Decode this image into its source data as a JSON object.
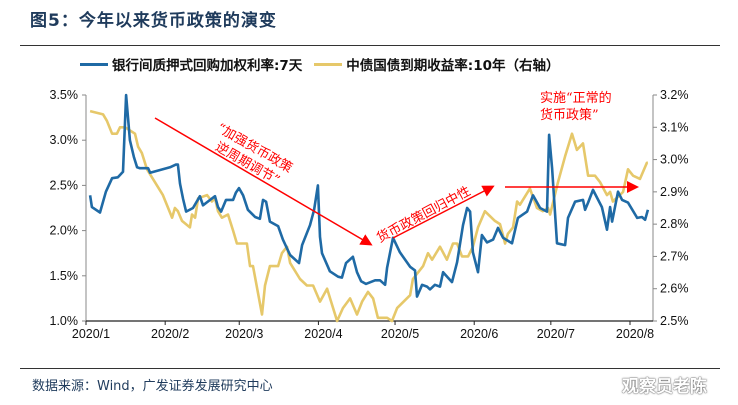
{
  "title": "图5：今年以来货币政策的演变",
  "source": "数据来源：Wind，广发证券发展研究中心",
  "watermark": "观察员老陈",
  "colors": {
    "blue": "#1f6aa5",
    "yellow": "#e6c86a",
    "annotation": "#ff0000"
  },
  "annotations": {
    "a1_line1": "“加强货币政策",
    "a1_line2": "逆周期调节”",
    "a2": "货币政策回归中性",
    "a3_line1": "实施“正常的",
    "a3_line2": "货币政策”"
  },
  "chart_data": {
    "type": "line",
    "x_unit": "days since 2020-01-01",
    "x_ticks": [
      {
        "day": 0,
        "label": "2020/1"
      },
      {
        "day": 31,
        "label": "2020/2"
      },
      {
        "day": 60,
        "label": "2020/3"
      },
      {
        "day": 91,
        "label": "2020/4"
      },
      {
        "day": 121,
        "label": "2020/5"
      },
      {
        "day": 152,
        "label": "2020/6"
      },
      {
        "day": 182,
        "label": "2020/7"
      },
      {
        "day": 213,
        "label": "2020/8"
      }
    ],
    "xlim": [
      0,
      222
    ],
    "y_left": {
      "lim": [
        1.0,
        3.5
      ],
      "ticks": [
        "1.0%",
        "1.5%",
        "2.0%",
        "2.5%",
        "3.0%",
        "3.5%"
      ],
      "values": [
        1.0,
        1.5,
        2.0,
        2.5,
        3.0,
        3.5
      ]
    },
    "y_right": {
      "lim": [
        2.5,
        3.2
      ],
      "ticks": [
        "2.5%",
        "2.6%",
        "2.7%",
        "2.8%",
        "2.9%",
        "3.0%",
        "3.1%",
        "3.2%"
      ],
      "values": [
        2.5,
        2.6,
        2.7,
        2.8,
        2.9,
        3.0,
        3.1,
        3.2
      ]
    },
    "legend_position": "top",
    "series": [
      {
        "name": "银行间质押式回购加权利率:7天",
        "axis": "left",
        "color": "#1f6aa5",
        "points": [
          [
            1.6,
            2.39
          ],
          [
            2.3,
            2.26
          ],
          [
            5.5,
            2.2
          ],
          [
            7.8,
            2.43
          ],
          [
            10.2,
            2.58
          ],
          [
            12.5,
            2.59
          ],
          [
            14.5,
            2.65
          ],
          [
            15.7,
            3.5
          ],
          [
            17.2,
            3.0
          ],
          [
            18.8,
            2.81
          ],
          [
            20,
            2.7
          ],
          [
            21.1,
            2.69
          ],
          [
            24.3,
            2.69
          ],
          [
            25.1,
            2.64
          ],
          [
            29,
            2.67
          ],
          [
            32.9,
            2.7
          ],
          [
            35.2,
            2.73
          ],
          [
            36,
            2.73
          ],
          [
            36.8,
            2.52
          ],
          [
            38,
            2.35
          ],
          [
            39.2,
            2.21
          ],
          [
            41.9,
            2.25
          ],
          [
            44.6,
            2.38
          ],
          [
            45.8,
            2.28
          ],
          [
            48.6,
            2.34
          ],
          [
            50.5,
            2.38
          ],
          [
            51.7,
            2.26
          ],
          [
            52.9,
            2.21
          ],
          [
            54.8,
            2.34
          ],
          [
            57.6,
            2.34
          ],
          [
            58.7,
            2.42
          ],
          [
            59.9,
            2.47
          ],
          [
            61.5,
            2.39
          ],
          [
            63.4,
            2.23
          ],
          [
            66.2,
            2.15
          ],
          [
            68.1,
            2.13
          ],
          [
            69.3,
            2.34
          ],
          [
            70.5,
            2.32
          ],
          [
            72,
            2.1
          ],
          [
            75.2,
            2.05
          ],
          [
            77.1,
            1.9
          ],
          [
            79.9,
            1.73
          ],
          [
            83.4,
            1.64
          ],
          [
            84.6,
            1.84
          ],
          [
            87.7,
            2.06
          ],
          [
            89.3,
            2.23
          ],
          [
            90.8,
            2.5
          ],
          [
            91.6,
            1.93
          ],
          [
            92.4,
            1.75
          ],
          [
            95.5,
            1.55
          ],
          [
            98.7,
            1.49
          ],
          [
            100.2,
            1.48
          ],
          [
            101.8,
            1.64
          ],
          [
            104.5,
            1.71
          ],
          [
            106.1,
            1.54
          ],
          [
            107.7,
            1.44
          ],
          [
            109.6,
            1.41
          ],
          [
            113.2,
            1.45
          ],
          [
            115.1,
            1.45
          ],
          [
            117.1,
            1.4
          ],
          [
            117.9,
            1.59
          ],
          [
            120.2,
            1.92
          ],
          [
            122.9,
            1.76
          ],
          [
            126.9,
            1.6
          ],
          [
            128.8,
            1.56
          ],
          [
            129.6,
            1.27
          ],
          [
            131.6,
            1.4
          ],
          [
            133.5,
            1.38
          ],
          [
            134.7,
            1.35
          ],
          [
            136.6,
            1.4
          ],
          [
            138.6,
            1.38
          ],
          [
            139.8,
            1.54
          ],
          [
            141.7,
            1.48
          ],
          [
            143.3,
            1.43
          ],
          [
            145.3,
            1.65
          ],
          [
            147.6,
            2.06
          ],
          [
            149.2,
            2.25
          ],
          [
            150.4,
            2.21
          ],
          [
            151.5,
            1.76
          ],
          [
            153.5,
            1.54
          ],
          [
            155,
            1.95
          ],
          [
            157,
            1.87
          ],
          [
            159.4,
            1.9
          ],
          [
            161.3,
            2.03
          ],
          [
            163.3,
            1.92
          ],
          [
            166.8,
            1.86
          ],
          [
            169.1,
            2.14
          ],
          [
            172.7,
            2.21
          ],
          [
            175,
            2.39
          ],
          [
            177.8,
            2.25
          ],
          [
            180.5,
            2.21
          ],
          [
            181.3,
            3.06
          ],
          [
            182.5,
            2.69
          ],
          [
            184.4,
            1.86
          ],
          [
            187.6,
            1.84
          ],
          [
            188.7,
            2.14
          ],
          [
            191.5,
            2.32
          ],
          [
            194.6,
            2.34
          ],
          [
            195.4,
            2.23
          ],
          [
            196.6,
            2.31
          ],
          [
            198.5,
            2.45
          ],
          [
            202,
            2.26
          ],
          [
            204,
            2.01
          ],
          [
            205.2,
            2.26
          ],
          [
            206,
            2.1
          ],
          [
            208.3,
            2.43
          ],
          [
            209.9,
            2.34
          ],
          [
            212.2,
            2.31
          ],
          [
            215.8,
            2.14
          ],
          [
            217.7,
            2.15
          ],
          [
            218.9,
            2.12
          ],
          [
            220,
            2.23
          ]
        ]
      },
      {
        "name": "中债国债到期收益率:10年（右轴）",
        "axis": "right",
        "color": "#e6c86a",
        "points": [
          [
            1.6,
            3.15
          ],
          [
            6.7,
            3.14
          ],
          [
            8.2,
            3.12
          ],
          [
            10.2,
            3.08
          ],
          [
            12.1,
            3.08
          ],
          [
            13.3,
            3.1
          ],
          [
            15.3,
            3.1
          ],
          [
            19.2,
            3.08
          ],
          [
            20.4,
            3.04
          ],
          [
            21.9,
            3.02
          ],
          [
            23.9,
            2.97
          ],
          [
            30.1,
            2.89
          ],
          [
            33.7,
            2.82
          ],
          [
            34.8,
            2.85
          ],
          [
            36,
            2.84
          ],
          [
            37.6,
            2.81
          ],
          [
            40.7,
            2.79
          ],
          [
            41.5,
            2.83
          ],
          [
            42.7,
            2.82
          ],
          [
            43.9,
            2.88
          ],
          [
            47.4,
            2.89
          ],
          [
            49.3,
            2.87
          ],
          [
            50.5,
            2.88
          ],
          [
            51.7,
            2.84
          ],
          [
            53.2,
            2.82
          ],
          [
            55.6,
            2.83
          ],
          [
            57.6,
            2.78
          ],
          [
            59.1,
            2.74
          ],
          [
            63,
            2.74
          ],
          [
            64.2,
            2.67
          ],
          [
            65.4,
            2.67
          ],
          [
            68.9,
            2.52
          ],
          [
            70.1,
            2.61
          ],
          [
            72,
            2.67
          ],
          [
            75.2,
            2.67
          ],
          [
            76.7,
            2.71
          ],
          [
            78.7,
            2.73
          ],
          [
            79.9,
            2.68
          ],
          [
            83.8,
            2.63
          ],
          [
            86.5,
            2.61
          ],
          [
            88.9,
            2.61
          ],
          [
            91.6,
            2.56
          ],
          [
            94.4,
            2.6
          ],
          [
            98.3,
            2.5
          ],
          [
            100.6,
            2.54
          ],
          [
            103.4,
            2.57
          ],
          [
            106.1,
            2.52
          ],
          [
            108.1,
            2.56
          ],
          [
            110.4,
            2.59
          ],
          [
            112.4,
            2.57
          ],
          [
            114.3,
            2.51
          ],
          [
            117.9,
            2.51
          ],
          [
            119.8,
            2.5
          ],
          [
            121.8,
            2.54
          ],
          [
            126.9,
            2.58
          ],
          [
            128,
            2.63
          ],
          [
            132,
            2.67
          ],
          [
            133.9,
            2.71
          ],
          [
            135.5,
            2.69
          ],
          [
            138.6,
            2.73
          ],
          [
            141.3,
            2.69
          ],
          [
            143.7,
            2.74
          ],
          [
            145.3,
            2.74
          ],
          [
            147.2,
            2.7
          ],
          [
            149.6,
            2.7
          ],
          [
            151.5,
            2.73
          ],
          [
            153.5,
            2.79
          ],
          [
            156.2,
            2.84
          ],
          [
            160.1,
            2.81
          ],
          [
            162.1,
            2.8
          ],
          [
            164.1,
            2.74
          ],
          [
            165.2,
            2.77
          ],
          [
            167.2,
            2.79
          ],
          [
            168.8,
            2.87
          ],
          [
            169.9,
            2.86
          ],
          [
            173.8,
            2.91
          ],
          [
            176.6,
            2.85
          ],
          [
            178.9,
            2.84
          ],
          [
            180.9,
            2.85
          ],
          [
            181.7,
            2.83
          ],
          [
            184.8,
            2.93
          ],
          [
            187.6,
            3.01
          ],
          [
            190.3,
            3.08
          ],
          [
            192.2,
            3.03
          ],
          [
            194.6,
            3.05
          ],
          [
            196.6,
            2.95
          ],
          [
            199.3,
            2.95
          ],
          [
            201.3,
            2.93
          ],
          [
            204,
            2.89
          ],
          [
            205.2,
            2.9
          ],
          [
            206.3,
            2.87
          ],
          [
            210.3,
            2.9
          ],
          [
            212.2,
            2.97
          ],
          [
            214.2,
            2.95
          ],
          [
            216.9,
            2.94
          ],
          [
            219.6,
            2.99
          ],
          [
            220,
            2.99
          ]
        ]
      }
    ]
  }
}
